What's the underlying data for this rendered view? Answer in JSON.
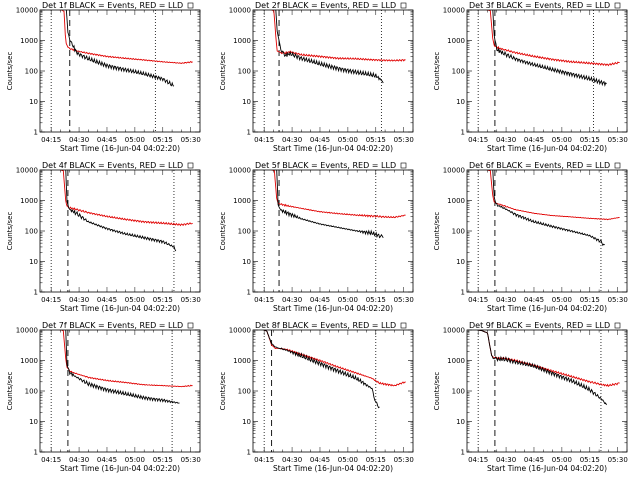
{
  "x_tick_labels": [
    "04:15",
    "04:30",
    "04:45",
    "05:00",
    "05:15",
    "05:30"
  ],
  "y_tick_labels": [
    "1",
    "10",
    "100",
    "1000",
    "10000"
  ],
  "chart_data": [
    {
      "type": "line",
      "title": "Det 1f BLACK = Events, RED = LLD",
      "xlabel": "Start Time (16-Jun-04 04:02:20)",
      "ylabel": "Counts/sec",
      "y_scale": "log",
      "ylim": [
        1,
        10000
      ],
      "series": [
        {
          "name": "BLACK = Events",
          "color": "#000000",
          "x": [
            8.1,
            9,
            11,
            14,
            20,
            30,
            40,
            50,
            60,
            66
          ],
          "y": [
            12000,
            1800,
            800,
            380,
            250,
            150,
            110,
            80,
            55,
            32
          ]
        },
        {
          "name": "RED = LLD",
          "color": "#e00000",
          "x": [
            0,
            3,
            5,
            6,
            6.9,
            7.6,
            8.1,
            9,
            11,
            14,
            20,
            30,
            40,
            50,
            60,
            70,
            76
          ],
          "y": [
            12000,
            11000,
            10000,
            9800,
            9000,
            1500,
            800,
            600,
            520,
            450,
            380,
            300,
            260,
            230,
            200,
            180,
            200
          ]
        }
      ],
      "dotted_lines_x": [
        0,
        56
      ],
      "dashed_line_x": 10
    },
    {
      "type": "line",
      "title": "Det 2f BLACK = Events, RED = LLD",
      "xlabel": "Start Time (16-Jun-04 04:02:20)",
      "ylabel": "Counts/sec",
      "y_scale": "log",
      "ylim": [
        1,
        10000
      ],
      "series": [
        {
          "name": "BLACK = Events",
          "color": "#000000",
          "x": [
            6.2,
            7,
            9,
            11,
            14,
            20,
            30,
            40,
            50,
            60,
            63,
            64
          ],
          "y": [
            12000,
            2000,
            500,
            320,
            370,
            260,
            170,
            120,
            90,
            70,
            50,
            40
          ]
        },
        {
          "name": "RED = LLD",
          "color": "#e00000",
          "x": [
            0,
            2.5,
            4,
            5.2,
            6.2,
            7,
            9,
            11,
            14,
            20,
            30,
            40,
            50,
            60,
            70,
            76
          ],
          "y": [
            12000,
            11000,
            10000,
            9500,
            1500,
            450,
            400,
            380,
            430,
            340,
            300,
            260,
            250,
            230,
            220,
            230
          ]
        }
      ],
      "dotted_lines_x": [
        0,
        63
      ],
      "dashed_line_x": 8
    },
    {
      "type": "line",
      "title": "Det 3f BLACK = Events, RED = LLD",
      "xlabel": "Start Time (16-Jun-04 04:02:20)",
      "ylabel": "Counts/sec",
      "y_scale": "log",
      "ylim": [
        1,
        10000
      ],
      "series": [
        {
          "name": "BLACK = Events",
          "color": "#000000",
          "x": [
            7.8,
            8.6,
            10,
            13,
            20,
            30,
            40,
            50,
            60,
            69
          ],
          "y": [
            12000,
            1500,
            500,
            400,
            250,
            160,
            110,
            80,
            55,
            38
          ]
        },
        {
          "name": "RED = LLD",
          "color": "#e00000",
          "x": [
            0,
            3,
            5,
            6.5,
            7.8,
            8.6,
            10,
            13,
            20,
            30,
            40,
            50,
            60,
            70,
            76
          ],
          "y": [
            12000,
            11000,
            10000,
            9500,
            1200,
            700,
            600,
            520,
            400,
            300,
            240,
            200,
            180,
            160,
            190
          ]
        }
      ],
      "dotted_lines_x": [
        0,
        62
      ],
      "dashed_line_x": 9
    },
    {
      "type": "line",
      "title": "Det 4f BLACK = Events, RED = LLD",
      "xlabel": "Start Time (16-Jun-04 04:02:20)",
      "ylabel": "Counts/sec",
      "y_scale": "log",
      "ylim": [
        1,
        10000
      ],
      "series": [
        {
          "name": "BLACK = Events",
          "color": "#000000",
          "x": [
            7.8,
            8.5,
            10,
            13,
            20,
            30,
            40,
            50,
            60,
            66,
            67
          ],
          "y": [
            12000,
            900,
            500,
            400,
            200,
            120,
            80,
            60,
            45,
            30,
            22
          ]
        },
        {
          "name": "RED = LLD",
          "color": "#e00000",
          "x": [
            0,
            3,
            5,
            6.5,
            7.8,
            8.5,
            10,
            13,
            20,
            30,
            40,
            50,
            60,
            70,
            76
          ],
          "y": [
            12000,
            11000,
            10000,
            9500,
            1000,
            650,
            580,
            520,
            400,
            300,
            240,
            200,
            180,
            160,
            180
          ]
        }
      ],
      "dotted_lines_x": [
        0,
        66
      ],
      "dashed_line_x": 9
    },
    {
      "type": "line",
      "title": "Det 5f BLACK = Events, RED = LLD",
      "xlabel": "Start Time (16-Jun-04 04:02:20)",
      "ylabel": "Counts/sec",
      "y_scale": "log",
      "ylim": [
        1,
        10000
      ],
      "series": [
        {
          "name": "BLACK = Events",
          "color": "#000000",
          "x": [
            6.7,
            7.5,
            9,
            12,
            20,
            30,
            40,
            50,
            58,
            62,
            64
          ],
          "y": [
            12000,
            700,
            480,
            400,
            250,
            170,
            130,
            100,
            85,
            70,
            60
          ]
        },
        {
          "name": "RED = LLD",
          "color": "#e00000",
          "x": [
            0,
            2.5,
            4.2,
            5.5,
            6.7,
            7.5,
            9,
            12,
            20,
            30,
            40,
            50,
            58,
            65,
            70,
            76
          ],
          "y": [
            12000,
            11000,
            10000,
            9500,
            1200,
            800,
            750,
            680,
            550,
            430,
            370,
            330,
            310,
            290,
            280,
            330
          ]
        }
      ],
      "dotted_lines_x": [
        0,
        60
      ],
      "dashed_line_x": 8
    },
    {
      "type": "line",
      "title": "Det 6f BLACK = Events, RED = LLD",
      "xlabel": "Start Time (16-Jun-04 04:02:20)",
      "ylabel": "Counts/sec",
      "y_scale": "log",
      "ylim": [
        1,
        10000
      ],
      "series": [
        {
          "name": "BLACK = Events",
          "color": "#000000",
          "x": [
            7.8,
            8.6,
            10,
            13,
            20,
            30,
            40,
            50,
            60,
            66,
            68
          ],
          "y": [
            12000,
            1300,
            700,
            600,
            350,
            200,
            140,
            100,
            70,
            45,
            35
          ]
        },
        {
          "name": "RED = LLD",
          "color": "#e00000",
          "x": [
            0,
            3,
            5,
            6.5,
            7.8,
            8.6,
            10,
            13,
            20,
            30,
            40,
            50,
            60,
            70,
            76
          ],
          "y": [
            12000,
            11000,
            10000,
            9500,
            1500,
            900,
            800,
            700,
            500,
            380,
            320,
            290,
            260,
            240,
            280
          ]
        }
      ],
      "dotted_lines_x": [
        0,
        66
      ],
      "dashed_line_x": 9
    },
    {
      "type": "line",
      "title": "Det 7f BLACK = Events, RED = LLD",
      "xlabel": "Start Time (16-Jun-04 04:02:20)",
      "ylabel": "Counts/sec",
      "y_scale": "log",
      "ylim": [
        1,
        10000
      ],
      "series": [
        {
          "name": "BLACK = Events",
          "color": "#000000",
          "x": [
            7.8,
            8.5,
            10,
            13,
            20,
            30,
            40,
            50,
            60,
            69
          ],
          "y": [
            12000,
            700,
            400,
            300,
            170,
            110,
            80,
            60,
            50,
            40
          ]
        },
        {
          "name": "RED = LLD",
          "color": "#e00000",
          "x": [
            0,
            3,
            5,
            6.5,
            7.8,
            8.5,
            10,
            13,
            20,
            30,
            40,
            50,
            60,
            70,
            76
          ],
          "y": [
            12000,
            11000,
            10000,
            9500,
            1200,
            600,
            450,
            380,
            280,
            220,
            190,
            160,
            150,
            140,
            150
          ]
        }
      ],
      "dotted_lines_x": [
        0,
        65
      ],
      "dashed_line_x": 9
    },
    {
      "type": "line",
      "title": "Det 8f BLACK = Events, RED = LLD",
      "xlabel": "Start Time (16-Jun-04 04:02:20)",
      "ylabel": "Counts/sec",
      "y_scale": "log",
      "ylim": [
        1,
        10000
      ],
      "series": [
        {
          "name": "BLACK = Events",
          "color": "#000000",
          "x": [
            0,
            1.5,
            4,
            6,
            8,
            12,
            20,
            30,
            40,
            50,
            58,
            60,
            62
          ],
          "y": [
            10000,
            9000,
            3500,
            2800,
            2500,
            2200,
            1400,
            800,
            450,
            250,
            120,
            40,
            30
          ]
        },
        {
          "name": "RED = LLD",
          "color": "#e00000",
          "x": [
            0,
            1.5,
            4,
            6,
            8,
            12,
            20,
            30,
            40,
            50,
            58,
            62,
            70,
            76
          ],
          "y": [
            10000,
            9000,
            3200,
            2500,
            2500,
            2300,
            1600,
            1000,
            600,
            380,
            260,
            180,
            150,
            200
          ]
        }
      ],
      "dotted_lines_x": [
        0,
        60
      ],
      "dashed_line_x": 4
    },
    {
      "type": "line",
      "title": "Det 9f BLACK = Events, RED = LLD",
      "xlabel": "Start Time (16-Jun-04 04:02:20)",
      "ylabel": "Counts/sec",
      "y_scale": "log",
      "ylim": [
        1,
        10000
      ],
      "series": [
        {
          "name": "BLACK = Events",
          "color": "#000000",
          "x": [
            0,
            2,
            5,
            7.2,
            8,
            10,
            14,
            20,
            30,
            40,
            50,
            60,
            67,
            69
          ],
          "y": [
            10000,
            9500,
            8000,
            1500,
            1200,
            1100,
            1100,
            900,
            650,
            380,
            220,
            110,
            50,
            35
          ]
        },
        {
          "name": "RED = LLD",
          "color": "#e00000",
          "x": [
            0,
            2,
            5,
            7.2,
            8,
            10,
            14,
            20,
            30,
            40,
            50,
            60,
            67,
            70,
            76
          ],
          "y": [
            10000,
            9500,
            8000,
            1500,
            1300,
            1200,
            1200,
            1000,
            700,
            450,
            300,
            200,
            160,
            150,
            180
          ]
        }
      ],
      "dotted_lines_x": [
        0,
        66
      ],
      "dashed_line_x": 9
    }
  ]
}
